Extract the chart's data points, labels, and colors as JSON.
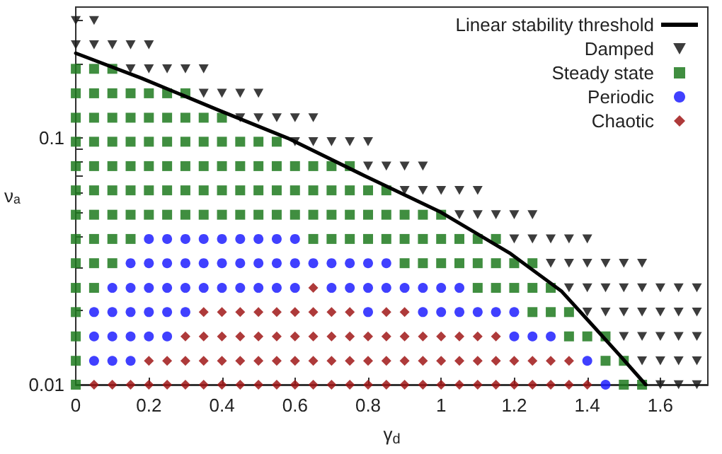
{
  "chart_data": {
    "type": "scatter",
    "xlabel": "γ$_{d}$",
    "ylabel": "νₐ",
    "log": "y",
    "xlim": [
      0,
      1.73
    ],
    "xticks": [
      0,
      0.2,
      0.4,
      0.6,
      0.8,
      1,
      1.2,
      1.4,
      1.6
    ],
    "ylim": [
      0.01,
      0.34
    ],
    "yticks": [
      0.01,
      {
        "value": 0.02,
        "label": null
      },
      {
        "value": 0.03,
        "label": null
      },
      {
        "value": 0.04,
        "label": null
      },
      {
        "value": 0.05,
        "label": null
      },
      {
        "value": 0.06,
        "label": null
      },
      {
        "value": 0.07,
        "label": null
      },
      {
        "value": 0.08,
        "label": null
      },
      {
        "value": 0.09,
        "label": null
      },
      0.1,
      {
        "value": 0.2,
        "label": null
      },
      {
        "value": 0.3,
        "label": null
      }
    ],
    "legend": "top right",
    "series": [
      {
        "name": "Linear stability threshold",
        "type": "line",
        "color": "#000000",
        "marker": "none",
        "line_style": "solid",
        "x": [
          0,
          0.18,
          0.39,
          0.58,
          0.79,
          1.0,
          1.19,
          1.33,
          1.41,
          1.49,
          1.56
        ],
        "values": [
          0.221,
          0.175,
          0.13,
          0.1,
          0.0704,
          0.05,
          0.034,
          0.0239,
          0.0177,
          0.0131,
          0.01
        ]
      },
      {
        "name": "Damped",
        "color": "#1a1a1a",
        "marker": "triangle",
        "x": [
          0,
          0.05,
          0,
          0.05,
          0.1,
          0.15,
          0.2,
          0.15,
          0.2,
          0.25,
          0.3,
          0.35,
          0.35,
          0.4,
          0.45,
          0.5,
          0.45,
          0.5,
          0.55,
          0.6,
          0.65,
          0.6,
          0.65,
          0.7,
          0.75,
          0.8,
          0.8,
          0.85,
          0.9,
          0.95,
          0.9,
          0.95,
          1,
          1.05,
          1.1,
          1.05,
          1.1,
          1.15,
          1.2,
          1.25,
          1.2,
          1.25,
          1.3,
          1.35,
          1.4,
          1.3,
          1.35,
          1.4,
          1.45,
          1.5,
          1.55,
          1.35,
          1.4,
          1.45,
          1.5,
          1.55,
          1.6,
          1.65,
          1.7,
          1.4,
          1.45,
          1.5,
          1.55,
          1.6,
          1.65,
          1.7,
          1.5,
          1.55,
          1.6,
          1.65,
          1.7,
          1.55,
          1.6,
          1.65,
          1.7,
          1.6,
          1.65,
          1.7
        ],
        "values": [
          0.3,
          0.3,
          0.239,
          0.239,
          0.239,
          0.239,
          0.239,
          0.191,
          0.191,
          0.191,
          0.191,
          0.191,
          0.152,
          0.152,
          0.152,
          0.152,
          0.121,
          0.121,
          0.121,
          0.121,
          0.121,
          0.0967,
          0.0967,
          0.0967,
          0.0967,
          0.0967,
          0.077,
          0.077,
          0.077,
          0.077,
          0.0614,
          0.0614,
          0.0614,
          0.0614,
          0.0614,
          0.0489,
          0.0489,
          0.0489,
          0.0489,
          0.0489,
          0.039,
          0.039,
          0.039,
          0.039,
          0.039,
          0.0311,
          0.0311,
          0.0311,
          0.0311,
          0.0311,
          0.0311,
          0.0247,
          0.0247,
          0.0247,
          0.0247,
          0.0247,
          0.0247,
          0.0247,
          0.0247,
          0.0197,
          0.0197,
          0.0197,
          0.0197,
          0.0197,
          0.0197,
          0.0197,
          0.0157,
          0.0157,
          0.0157,
          0.0157,
          0.0157,
          0.0125,
          0.0125,
          0.0125,
          0.0125,
          0.01,
          0.01,
          0.01
        ]
      },
      {
        "name": "Steady state",
        "color": "#1e7a1e",
        "marker": "square",
        "x": [
          0,
          0.05,
          0.1,
          0,
          0.05,
          0.1,
          0.15,
          0.2,
          0.25,
          0.3,
          0,
          0.05,
          0.1,
          0.15,
          0.2,
          0.25,
          0.3,
          0.35,
          0.4,
          0,
          0.05,
          0.1,
          0.15,
          0.2,
          0.25,
          0.3,
          0.35,
          0.4,
          0.45,
          0.5,
          0.55,
          0,
          0.05,
          0.1,
          0.15,
          0.2,
          0.25,
          0.3,
          0.35,
          0.4,
          0.45,
          0.5,
          0.55,
          0.6,
          0.65,
          0.7,
          0.75,
          0,
          0.05,
          0.1,
          0.15,
          0.2,
          0.25,
          0.3,
          0.35,
          0.4,
          0.45,
          0.5,
          0.55,
          0.6,
          0.65,
          0.7,
          0.75,
          0.8,
          0.85,
          0,
          0.05,
          0.1,
          0.15,
          0.2,
          0.25,
          0.3,
          0.35,
          0.4,
          0.45,
          0.5,
          0.55,
          0.6,
          0.65,
          0.7,
          0.75,
          0.8,
          0.85,
          0.9,
          0.95,
          1,
          0,
          0.05,
          0.1,
          0.15,
          0.65,
          0.7,
          0.75,
          0.8,
          0.85,
          0.9,
          0.95,
          1,
          1.05,
          1.1,
          1.15,
          0,
          0.05,
          0.1,
          0.9,
          0.95,
          1,
          1.05,
          1.1,
          1.15,
          1.2,
          1.25,
          0,
          0.05,
          1.1,
          1.15,
          1.2,
          1.25,
          1.3,
          0,
          1.25,
          1.3,
          1.35,
          0,
          1.35,
          1.4,
          1.45,
          0,
          1.45,
          1.5,
          0,
          1.5,
          1.55
        ],
        "values": [
          0.191,
          0.191,
          0.191,
          0.152,
          0.152,
          0.152,
          0.152,
          0.152,
          0.152,
          0.152,
          0.121,
          0.121,
          0.121,
          0.121,
          0.121,
          0.121,
          0.121,
          0.121,
          0.121,
          0.0967,
          0.0967,
          0.0967,
          0.0967,
          0.0967,
          0.0967,
          0.0967,
          0.0967,
          0.0967,
          0.0967,
          0.0967,
          0.0967,
          0.077,
          0.077,
          0.077,
          0.077,
          0.077,
          0.077,
          0.077,
          0.077,
          0.077,
          0.077,
          0.077,
          0.077,
          0.077,
          0.077,
          0.077,
          0.077,
          0.0614,
          0.0614,
          0.0614,
          0.0614,
          0.0614,
          0.0614,
          0.0614,
          0.0614,
          0.0614,
          0.0614,
          0.0614,
          0.0614,
          0.0614,
          0.0614,
          0.0614,
          0.0614,
          0.0614,
          0.0614,
          0.0489,
          0.0489,
          0.0489,
          0.0489,
          0.0489,
          0.0489,
          0.0489,
          0.0489,
          0.0489,
          0.0489,
          0.0489,
          0.0489,
          0.0489,
          0.0489,
          0.0489,
          0.0489,
          0.0489,
          0.0489,
          0.0489,
          0.0489,
          0.0489,
          0.039,
          0.039,
          0.039,
          0.039,
          0.039,
          0.039,
          0.039,
          0.039,
          0.039,
          0.039,
          0.039,
          0.039,
          0.039,
          0.039,
          0.039,
          0.0311,
          0.0311,
          0.0311,
          0.0311,
          0.0311,
          0.0311,
          0.0311,
          0.0311,
          0.0311,
          0.0311,
          0.0311,
          0.0247,
          0.0247,
          0.0247,
          0.0247,
          0.0247,
          0.0247,
          0.0247,
          0.0197,
          0.0197,
          0.0197,
          0.0197,
          0.0157,
          0.0157,
          0.0157,
          0.0157,
          0.0125,
          0.0125,
          0.0125,
          0.01,
          0.01,
          0.01
        ]
      },
      {
        "name": "Periodic",
        "color": "#1f1fff",
        "marker": "circle",
        "x": [
          0.2,
          0.25,
          0.3,
          0.35,
          0.4,
          0.45,
          0.5,
          0.55,
          0.6,
          0.15,
          0.2,
          0.25,
          0.3,
          0.35,
          0.4,
          0.45,
          0.5,
          0.55,
          0.6,
          0.65,
          0.7,
          0.75,
          0.8,
          0.85,
          0.1,
          0.15,
          0.2,
          0.25,
          0.3,
          0.35,
          0.4,
          0.45,
          0.5,
          0.55,
          0.6,
          0.7,
          0.75,
          0.8,
          0.85,
          0.9,
          0.95,
          1,
          1.05,
          0.05,
          0.1,
          0.15,
          0.2,
          0.25,
          0.3,
          0.8,
          0.95,
          1,
          1.05,
          1.1,
          1.15,
          1.2,
          0.05,
          0.1,
          0.15,
          0.2,
          0.25,
          1.2,
          1.25,
          1.3,
          0.05,
          0.1,
          0.15,
          1.4,
          1.45
        ],
        "values": [
          0.039,
          0.039,
          0.039,
          0.039,
          0.039,
          0.039,
          0.039,
          0.039,
          0.039,
          0.0311,
          0.0311,
          0.0311,
          0.0311,
          0.0311,
          0.0311,
          0.0311,
          0.0311,
          0.0311,
          0.0311,
          0.0311,
          0.0311,
          0.0311,
          0.0311,
          0.0311,
          0.0247,
          0.0247,
          0.0247,
          0.0247,
          0.0247,
          0.0247,
          0.0247,
          0.0247,
          0.0247,
          0.0247,
          0.0247,
          0.0247,
          0.0247,
          0.0247,
          0.0247,
          0.0247,
          0.0247,
          0.0247,
          0.0247,
          0.0197,
          0.0197,
          0.0197,
          0.0197,
          0.0197,
          0.0197,
          0.0197,
          0.0197,
          0.0197,
          0.0197,
          0.0197,
          0.0197,
          0.0197,
          0.0157,
          0.0157,
          0.0157,
          0.0157,
          0.0157,
          0.0157,
          0.0157,
          0.0157,
          0.0125,
          0.0125,
          0.0125,
          0.0125,
          0.01
        ]
      },
      {
        "name": "Chaotic",
        "color": "#a01818",
        "marker": "diamond",
        "x": [
          0.65,
          0.35,
          0.4,
          0.45,
          0.5,
          0.55,
          0.6,
          0.65,
          0.7,
          0.75,
          0.85,
          0.9,
          0.3,
          0.35,
          0.4,
          0.45,
          0.5,
          0.55,
          0.6,
          0.65,
          0.7,
          0.75,
          0.8,
          0.85,
          0.9,
          0.95,
          1,
          1.05,
          1.1,
          1.15,
          0.2,
          0.25,
          0.3,
          0.35,
          0.4,
          0.45,
          0.5,
          0.55,
          0.6,
          0.65,
          0.7,
          0.75,
          0.8,
          0.85,
          0.9,
          0.95,
          1,
          1.05,
          1.1,
          1.15,
          1.2,
          1.25,
          1.3,
          1.35,
          0.05,
          0.1,
          0.15,
          0.2,
          0.25,
          0.3,
          0.35,
          0.4,
          0.45,
          0.5,
          0.55,
          0.6,
          0.65,
          0.7,
          0.75,
          0.8,
          0.85,
          0.9,
          0.95,
          1,
          1.05,
          1.1,
          1.15,
          1.2,
          1.25,
          1.3,
          1.35,
          1.4
        ],
        "values": [
          0.0247,
          0.0197,
          0.0197,
          0.0197,
          0.0197,
          0.0197,
          0.0197,
          0.0197,
          0.0197,
          0.0197,
          0.0197,
          0.0197,
          0.0157,
          0.0157,
          0.0157,
          0.0157,
          0.0157,
          0.0157,
          0.0157,
          0.0157,
          0.0157,
          0.0157,
          0.0157,
          0.0157,
          0.0157,
          0.0157,
          0.0157,
          0.0157,
          0.0157,
          0.0157,
          0.0125,
          0.0125,
          0.0125,
          0.0125,
          0.0125,
          0.0125,
          0.0125,
          0.0125,
          0.0125,
          0.0125,
          0.0125,
          0.0125,
          0.0125,
          0.0125,
          0.0125,
          0.0125,
          0.0125,
          0.0125,
          0.0125,
          0.0125,
          0.0125,
          0.0125,
          0.0125,
          0.0125,
          0.01,
          0.01,
          0.01,
          0.01,
          0.01,
          0.01,
          0.01,
          0.01,
          0.01,
          0.01,
          0.01,
          0.01,
          0.01,
          0.01,
          0.01,
          0.01,
          0.01,
          0.01,
          0.01,
          0.01,
          0.01,
          0.01,
          0.01,
          0.01,
          0.01,
          0.01,
          0.01,
          0.01
        ]
      }
    ]
  }
}
